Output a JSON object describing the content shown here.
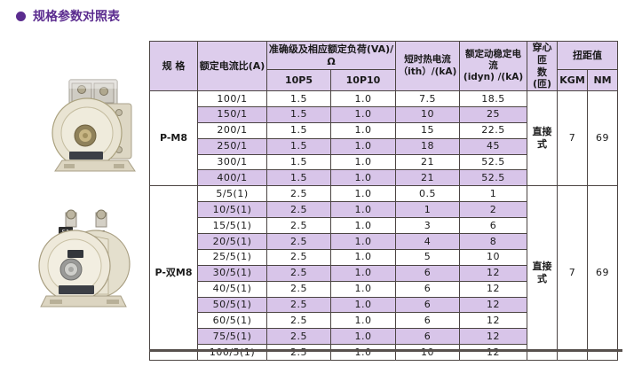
{
  "page": {
    "title": "规格参数对照表"
  },
  "colors": {
    "accent": "#5b2c8f",
    "header_bg": "#ddcdec",
    "stripe_bg": "#d8c5e9",
    "border": "#4c4543"
  },
  "table": {
    "headers": {
      "spec": "规 格",
      "ratio": "额定电流比(A)",
      "accuracy_group": "准确级及相应额定负荷(VA)/Ω",
      "accuracy_cols": [
        "10P5",
        "10P10"
      ],
      "ith_line1": "短时热电流",
      "ith_line2": "（ith）/(kA)",
      "idyn_line1": "额定动稳定电流",
      "idyn_line2": "(idyn) /(kA)",
      "turns_line1": "穿心匝",
      "turns_line2": "数(匝)",
      "torque_group": "扭距值",
      "torque_cols": [
        "KGM",
        "NM"
      ]
    },
    "groups": [
      {
        "spec": "P-M8",
        "turns": "直接式",
        "kgm": "7",
        "nm": "69",
        "rows": [
          {
            "ratio": "100/1",
            "p5": "1.5",
            "p10": "1.0",
            "ith": "7.5",
            "idyn": "18.5"
          },
          {
            "ratio": "150/1",
            "p5": "1.5",
            "p10": "1.0",
            "ith": "10",
            "idyn": "25"
          },
          {
            "ratio": "200/1",
            "p5": "1.5",
            "p10": "1.0",
            "ith": "15",
            "idyn": "22.5"
          },
          {
            "ratio": "250/1",
            "p5": "1.5",
            "p10": "1.0",
            "ith": "18",
            "idyn": "45"
          },
          {
            "ratio": "300/1",
            "p5": "1.5",
            "p10": "1.0",
            "ith": "21",
            "idyn": "52.5"
          },
          {
            "ratio": "400/1",
            "p5": "1.5",
            "p10": "1.0",
            "ith": "21",
            "idyn": "52.5"
          }
        ]
      },
      {
        "spec": "P-双M8",
        "turns": "直接式",
        "kgm": "7",
        "nm": "69",
        "rows": [
          {
            "ratio": "5/5(1)",
            "p5": "2.5",
            "p10": "1.0",
            "ith": "0.5",
            "idyn": "1"
          },
          {
            "ratio": "10/5(1)",
            "p5": "2.5",
            "p10": "1.0",
            "ith": "1",
            "idyn": "2"
          },
          {
            "ratio": "15/5(1)",
            "p5": "2.5",
            "p10": "1.0",
            "ith": "3",
            "idyn": "6"
          },
          {
            "ratio": "20/5(1)",
            "p5": "2.5",
            "p10": "1.0",
            "ith": "4",
            "idyn": "8"
          },
          {
            "ratio": "25/5(1)",
            "p5": "2.5",
            "p10": "1.0",
            "ith": "5",
            "idyn": "10"
          },
          {
            "ratio": "30/5(1)",
            "p5": "2.5",
            "p10": "1.0",
            "ith": "6",
            "idyn": "12"
          },
          {
            "ratio": "40/5(1)",
            "p5": "2.5",
            "p10": "1.0",
            "ith": "6",
            "idyn": "12"
          },
          {
            "ratio": "50/5(1)",
            "p5": "2.5",
            "p10": "1.0",
            "ith": "6",
            "idyn": "12"
          },
          {
            "ratio": "60/5(1)",
            "p5": "2.5",
            "p10": "1.0",
            "ith": "6",
            "idyn": "12"
          },
          {
            "ratio": "75/5(1)",
            "p5": "2.5",
            "p10": "1.0",
            "ith": "6",
            "idyn": "12"
          },
          {
            "ratio": "100/5(1)",
            "p5": "2.5",
            "p10": "1.0",
            "ith": "10",
            "idyn": "12"
          }
        ]
      }
    ]
  },
  "images": [
    {
      "name": "product-photo-p-m8"
    },
    {
      "name": "product-photo-p-shuang-m8",
      "labels": [
        "S1",
        "S2"
      ]
    }
  ]
}
